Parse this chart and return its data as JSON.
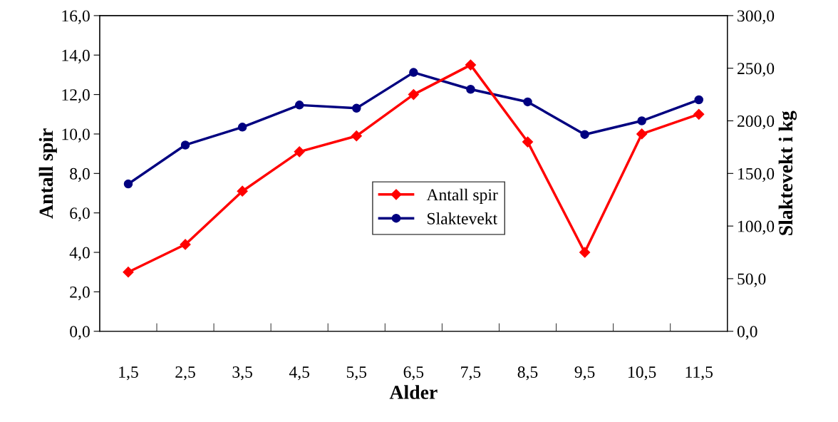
{
  "chart_data": {
    "type": "line",
    "xlabel": "Alder",
    "ylabel": "Antall spir",
    "y2label": "Slaktevekt i kg",
    "categories": [
      "1,5",
      "2,5",
      "3,5",
      "4,5",
      "5,5",
      "6,5",
      "7,5",
      "8,5",
      "9,5",
      "10,5",
      "11,5"
    ],
    "series": [
      {
        "name": "Antall spir",
        "color": "#ff0000",
        "marker": "diamond",
        "values": [
          3.0,
          4.4,
          7.1,
          9.1,
          9.9,
          12.0,
          13.5,
          9.6,
          4.0,
          10.0,
          11.0
        ]
      },
      {
        "name": "Slaktevekt",
        "color": "#000080",
        "marker": "circle",
        "axis": "y2",
        "values": [
          140,
          177,
          194,
          215,
          212,
          246,
          230,
          218,
          187,
          200,
          220
        ]
      }
    ],
    "ylim": [
      0,
      16
    ],
    "yticks": [
      {
        "value": 0,
        "label": "0,0"
      },
      {
        "value": 2,
        "label": "2,0"
      },
      {
        "value": 4,
        "label": "4,0"
      },
      {
        "value": 6,
        "label": "6,0"
      },
      {
        "value": 8,
        "label": "8,0"
      },
      {
        "value": 10,
        "label": "10,0"
      },
      {
        "value": 12,
        "label": "12,0"
      },
      {
        "value": 14,
        "label": "14,0"
      },
      {
        "value": 16,
        "label": "16,0"
      }
    ],
    "y2lim": [
      0,
      300
    ],
    "y2ticks": [
      {
        "value": 0,
        "label": "0,0"
      },
      {
        "value": 50,
        "label": "50,0"
      },
      {
        "value": 100,
        "label": "100,0"
      },
      {
        "value": 150,
        "label": "150,0"
      },
      {
        "value": 200,
        "label": "200,0"
      },
      {
        "value": 250,
        "label": "250,0"
      },
      {
        "value": 300,
        "label": "300,0"
      }
    ],
    "legend": "center",
    "grid": false,
    "line_style": "solid"
  }
}
